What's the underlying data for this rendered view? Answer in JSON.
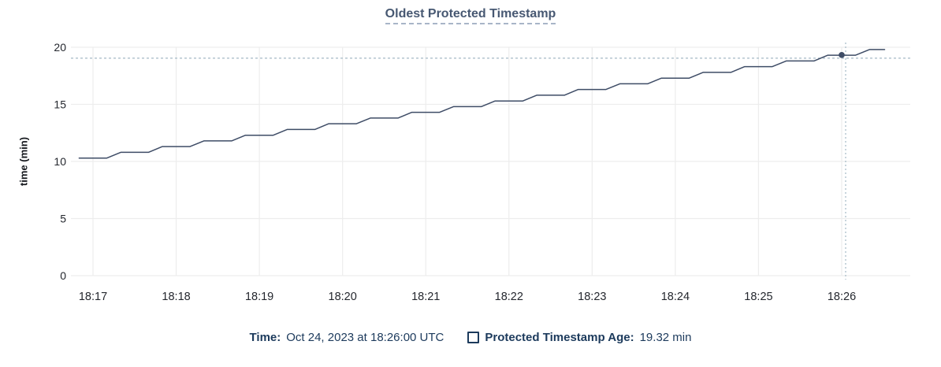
{
  "page": {
    "background": "#ffffff"
  },
  "chart": {
    "title": "Oldest Protected Timestamp",
    "ylabel": "time (min)",
    "footer": {
      "time_label": "Time:",
      "time_value": "Oct 24, 2023 at 18:26:00 UTC",
      "series_label": "Protected Timestamp Age:",
      "series_value": "19.32 min"
    }
  },
  "chart_data": {
    "type": "line",
    "title": "Oldest Protected Timestamp",
    "xlabel": "",
    "ylabel": "time (min)",
    "ylim": [
      0,
      20
    ],
    "y_ticks": [
      0,
      5,
      10,
      15,
      20
    ],
    "x_ticks": [
      "18:17",
      "18:18",
      "18:19",
      "18:20",
      "18:21",
      "18:22",
      "18:23",
      "18:24",
      "18:25",
      "18:26"
    ],
    "grid": true,
    "legend_position": "bottom",
    "series": [
      {
        "name": "Protected Timestamp Age",
        "unit": "min",
        "color": "#3e4c66",
        "points": [
          [
            "18:16:50",
            10.3
          ],
          [
            "18:17:10",
            10.3
          ],
          [
            "18:17:20",
            10.8
          ],
          [
            "18:17:40",
            10.8
          ],
          [
            "18:17:50",
            11.3
          ],
          [
            "18:18:10",
            11.3
          ],
          [
            "18:18:20",
            11.8
          ],
          [
            "18:18:40",
            11.8
          ],
          [
            "18:18:50",
            12.3
          ],
          [
            "18:19:10",
            12.3
          ],
          [
            "18:19:20",
            12.8
          ],
          [
            "18:19:40",
            12.8
          ],
          [
            "18:19:50",
            13.3
          ],
          [
            "18:20:10",
            13.3
          ],
          [
            "18:20:20",
            13.8
          ],
          [
            "18:20:40",
            13.8
          ],
          [
            "18:20:50",
            14.3
          ],
          [
            "18:21:10",
            14.3
          ],
          [
            "18:21:20",
            14.8
          ],
          [
            "18:21:40",
            14.8
          ],
          [
            "18:21:50",
            15.3
          ],
          [
            "18:22:10",
            15.3
          ],
          [
            "18:22:20",
            15.8
          ],
          [
            "18:22:40",
            15.8
          ],
          [
            "18:22:50",
            16.3
          ],
          [
            "18:23:10",
            16.3
          ],
          [
            "18:23:20",
            16.8
          ],
          [
            "18:23:40",
            16.8
          ],
          [
            "18:23:50",
            17.3
          ],
          [
            "18:24:10",
            17.3
          ],
          [
            "18:24:20",
            17.8
          ],
          [
            "18:24:40",
            17.8
          ],
          [
            "18:24:50",
            18.3
          ],
          [
            "18:25:10",
            18.3
          ],
          [
            "18:25:20",
            18.8
          ],
          [
            "18:25:40",
            18.8
          ],
          [
            "18:25:50",
            19.3
          ],
          [
            "18:26:10",
            19.3
          ],
          [
            "18:26:20",
            19.8
          ],
          [
            "18:26:31",
            19.8
          ]
        ]
      }
    ],
    "hover": {
      "time": "18:26:00",
      "value": 19.32
    }
  },
  "colors": {
    "title": "#475872",
    "series_line": "#3e4c66",
    "legend_text": "#1c3a5c",
    "grid": "#ededed",
    "crosshair": "#a4b9c6",
    "tick_label": "#24272e"
  }
}
